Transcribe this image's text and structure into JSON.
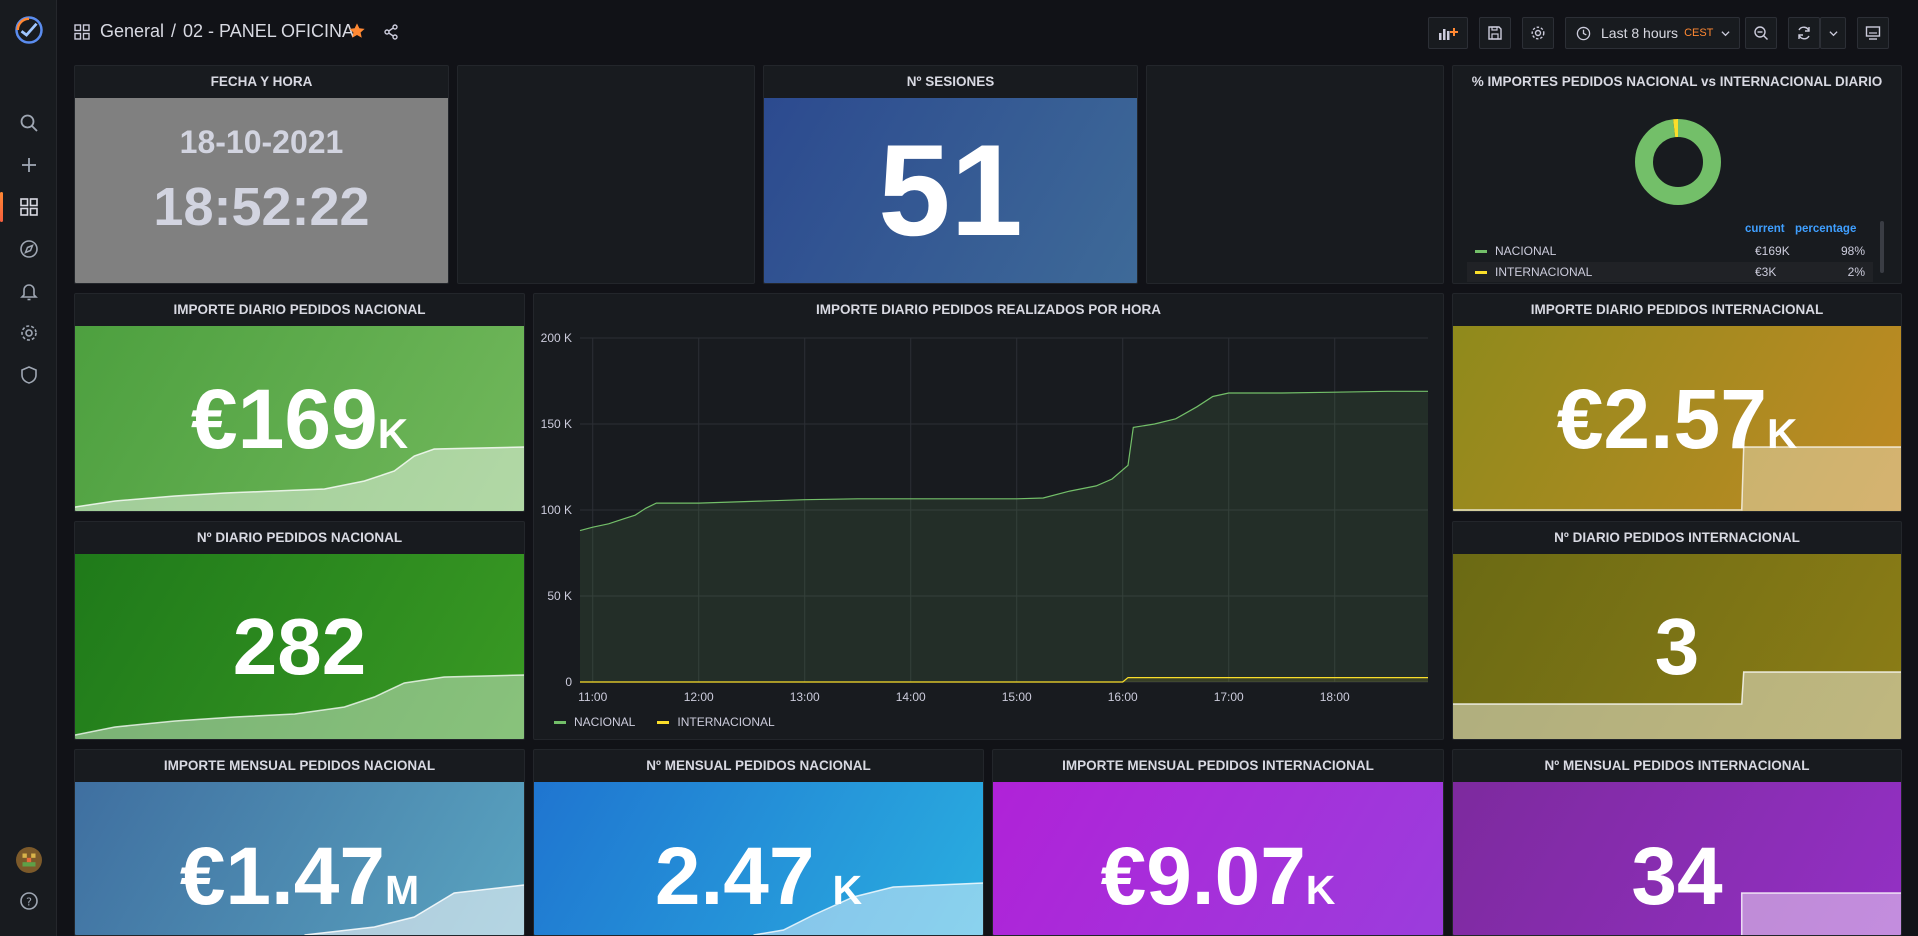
{
  "colors": {
    "nacional": "#73bf69",
    "internacional": "#fade2a",
    "accent_orange": "#ff8833",
    "sessions_bg_start": "#2f4a8e",
    "sessions_bg_end": "#3f6a98"
  },
  "breadcrumb": {
    "folder": "General",
    "separator": "/",
    "dashboard": "02 - PANEL OFICINA"
  },
  "toolbar": {
    "time_range": "Last 8 hours",
    "timezone": "CEST"
  },
  "sidebar": {
    "icons": [
      "grafana-logo-icon",
      "search-icon",
      "plus-icon",
      "dashboards-icon",
      "explore-icon",
      "alert-bell-icon",
      "gear-icon",
      "shield-icon",
      "avatar",
      "help-icon"
    ]
  },
  "panels": {
    "clock": {
      "title": "FECHA Y HORA",
      "date": "18-10-2021",
      "time": "18:52:22"
    },
    "sessions": {
      "title": "Nº SESIONES",
      "value": "51"
    },
    "pie": {
      "title": "% IMPORTES PEDIDOS NACIONAL vs INTERNACIONAL DIARIO",
      "col_current": "current",
      "col_percentage": "percentage",
      "rows": [
        {
          "name": "NACIONAL",
          "current": "€169K",
          "percentage": "98%"
        },
        {
          "name": "INTERNACIONAL",
          "current": "€3K",
          "percentage": "2%"
        }
      ]
    },
    "imp_diario_nac": {
      "title": "IMPORTE DIARIO PEDIDOS NACIONAL",
      "value": "€169",
      "unit": "K"
    },
    "num_diario_nac": {
      "title": "Nº DIARIO PEDIDOS NACIONAL",
      "value": "282"
    },
    "imp_diario_int": {
      "title": "IMPORTE DIARIO PEDIDOS INTERNACIONAL",
      "value": "€2.57",
      "unit": "K"
    },
    "num_diario_int": {
      "title": "Nº DIARIO PEDIDOS INTERNACIONAL",
      "value": "3"
    },
    "imp_mensual_nac": {
      "title": "IMPORTE MENSUAL PEDIDOS NACIONAL",
      "value": "€1.47",
      "unit": "M"
    },
    "num_mensual_nac": {
      "title": "Nº MENSUAL PEDIDOS NACIONAL",
      "value": "2.47",
      "unit": "K"
    },
    "imp_mensual_int": {
      "title": "IMPORTE MENSUAL PEDIDOS INTERNACIONAL",
      "value": "€9.07",
      "unit": "K"
    },
    "num_mensual_int": {
      "title": "Nº MENSUAL PEDIDOS INTERNACIONAL",
      "value": "34"
    },
    "hourly": {
      "title": "IMPORTE DIARIO PEDIDOS REALIZADOS POR HORA",
      "legend_nacional": "NACIONAL",
      "legend_internacional": "INTERNACIONAL"
    }
  },
  "chart_data": {
    "type": "area",
    "title": "IMPORTE DIARIO PEDIDOS REALIZADOS POR HORA",
    "xlabel": "",
    "ylabel": "",
    "x_ticks": [
      "11:00",
      "12:00",
      "13:00",
      "14:00",
      "15:00",
      "16:00",
      "17:00",
      "18:00"
    ],
    "y_ticks": [
      "0",
      "50 K",
      "100 K",
      "150 K",
      "200 K"
    ],
    "ylim": [
      0,
      200000
    ],
    "x_range_hours": [
      10.88,
      18.88
    ],
    "grid": true,
    "legend": "bottom-left",
    "series": [
      {
        "name": "NACIONAL",
        "x": [
          10.88,
          11.0,
          11.15,
          11.3,
          11.4,
          11.5,
          11.6,
          11.75,
          12.0,
          12.5,
          13.0,
          13.5,
          14.0,
          14.5,
          15.0,
          15.25,
          15.5,
          15.75,
          15.9,
          16.05,
          16.1,
          16.3,
          16.5,
          16.7,
          16.85,
          17.0,
          17.5,
          18.0,
          18.5,
          18.88
        ],
        "y": [
          88000,
          90000,
          92000,
          95000,
          97000,
          101000,
          104000,
          104000,
          104000,
          105000,
          106000,
          106500,
          106500,
          106500,
          106500,
          107000,
          111000,
          114000,
          118000,
          126000,
          148000,
          150000,
          153000,
          160000,
          166000,
          168000,
          168000,
          168500,
          169000,
          169000
        ]
      },
      {
        "name": "INTERNACIONAL",
        "x": [
          10.88,
          12.0,
          14.0,
          15.0,
          16.0,
          16.05,
          17.0,
          18.0,
          18.88
        ],
        "y": [
          0,
          0,
          0,
          0,
          0,
          2570,
          2570,
          2570,
          2570
        ]
      }
    ]
  }
}
